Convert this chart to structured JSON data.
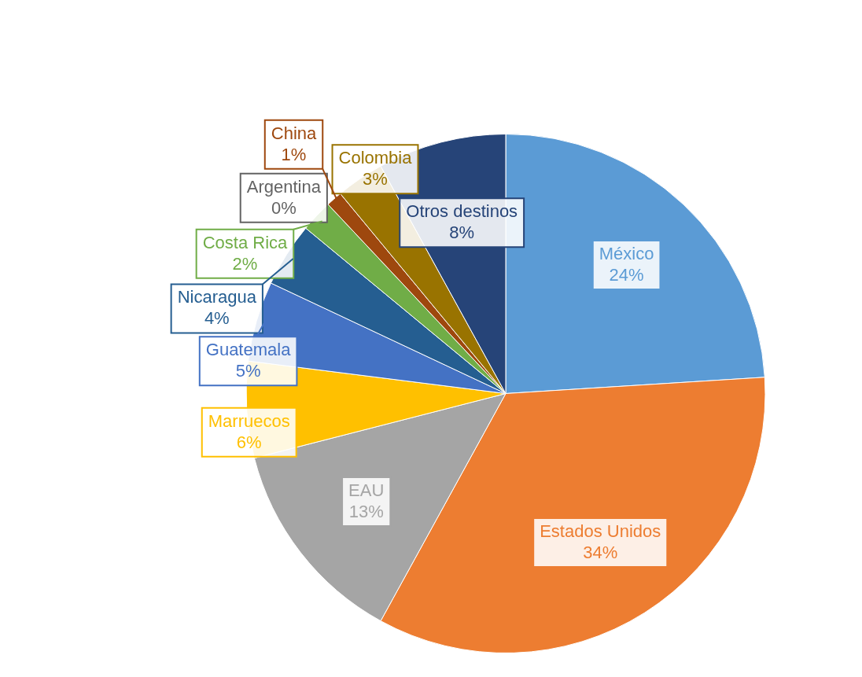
{
  "chart_data": {
    "type": "pie",
    "categories": [
      "México",
      "Estados Unidos",
      "EAU",
      "Marruecos",
      "Guatemala",
      "Nicaragua",
      "Costa Rica",
      "China",
      "Argentina",
      "Colombia",
      "Otros destinos"
    ],
    "values": [
      24,
      34,
      13,
      6,
      5,
      4,
      2,
      1,
      0,
      3,
      8
    ],
    "value_labels": [
      "24%",
      "34%",
      "13%",
      "6%",
      "5%",
      "4%",
      "2%",
      "1%",
      "0%",
      "3%",
      "8%"
    ],
    "colors": [
      "#5b9bd5",
      "#ed7d31",
      "#a5a5a5",
      "#ffc000",
      "#4472c4",
      "#255e91",
      "#70ad47",
      "#9e480e",
      "#636363",
      "#997300",
      "#264478"
    ],
    "legend": false
  }
}
